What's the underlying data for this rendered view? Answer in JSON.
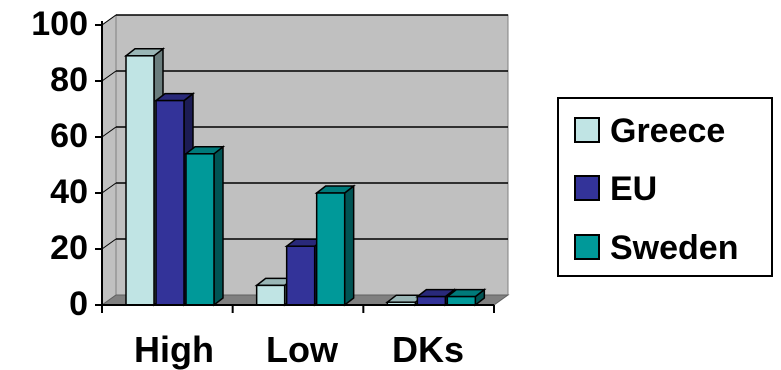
{
  "chart_data": {
    "type": "bar",
    "categories": [
      "High",
      "Low",
      "DKs"
    ],
    "series": [
      {
        "name": "Greece",
        "values": [
          89,
          7,
          1
        ],
        "color": "#c0e4e4"
      },
      {
        "name": "EU",
        "values": [
          73,
          21,
          3
        ],
        "color": "#333399"
      },
      {
        "name": "Sweden",
        "values": [
          54,
          40,
          3
        ],
        "color": "#009999"
      }
    ],
    "ylim": [
      0,
      100
    ],
    "yticks": [
      "0",
      "20",
      "40",
      "60",
      "80",
      "100"
    ],
    "grid": true,
    "legend": "right",
    "plot_background": "#c0c0c0"
  }
}
